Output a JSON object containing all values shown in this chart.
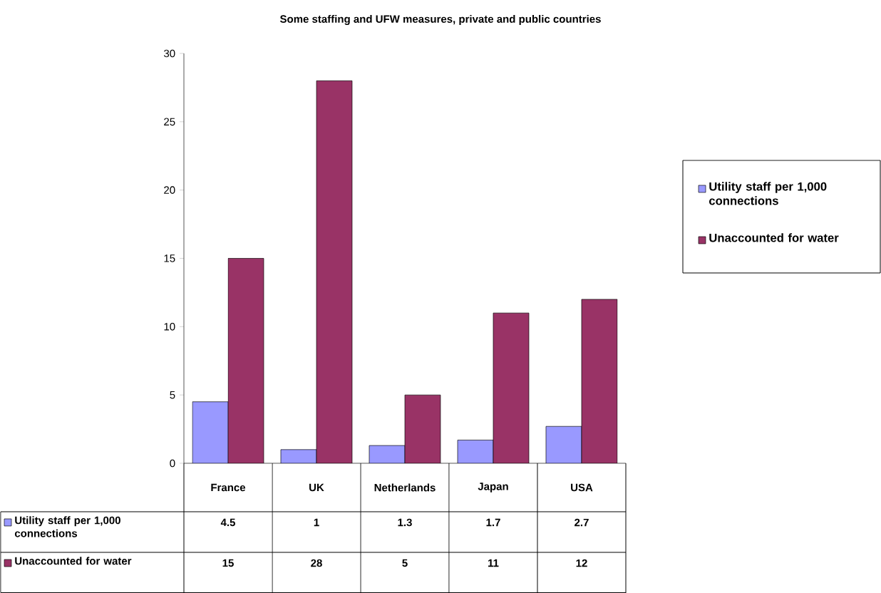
{
  "chart_data": {
    "type": "bar",
    "title": "Some staffing and UFW measures, private and public countries",
    "categories": [
      "France",
      "UK",
      "Netherlands",
      "Japan",
      "USA"
    ],
    "series": [
      {
        "name": "Utility staff per 1,000 connections",
        "color": "#9999ff",
        "values": [
          4.5,
          1,
          1.3,
          1.7,
          2.7
        ]
      },
      {
        "name": "Unaccounted for water",
        "color": "#993366",
        "values": [
          15,
          28,
          5,
          11,
          12
        ]
      }
    ],
    "ylim": [
      0,
      30
    ],
    "yticks": [
      0,
      5,
      10,
      15,
      20,
      25,
      30
    ],
    "data_labels": true,
    "legend": "right"
  }
}
